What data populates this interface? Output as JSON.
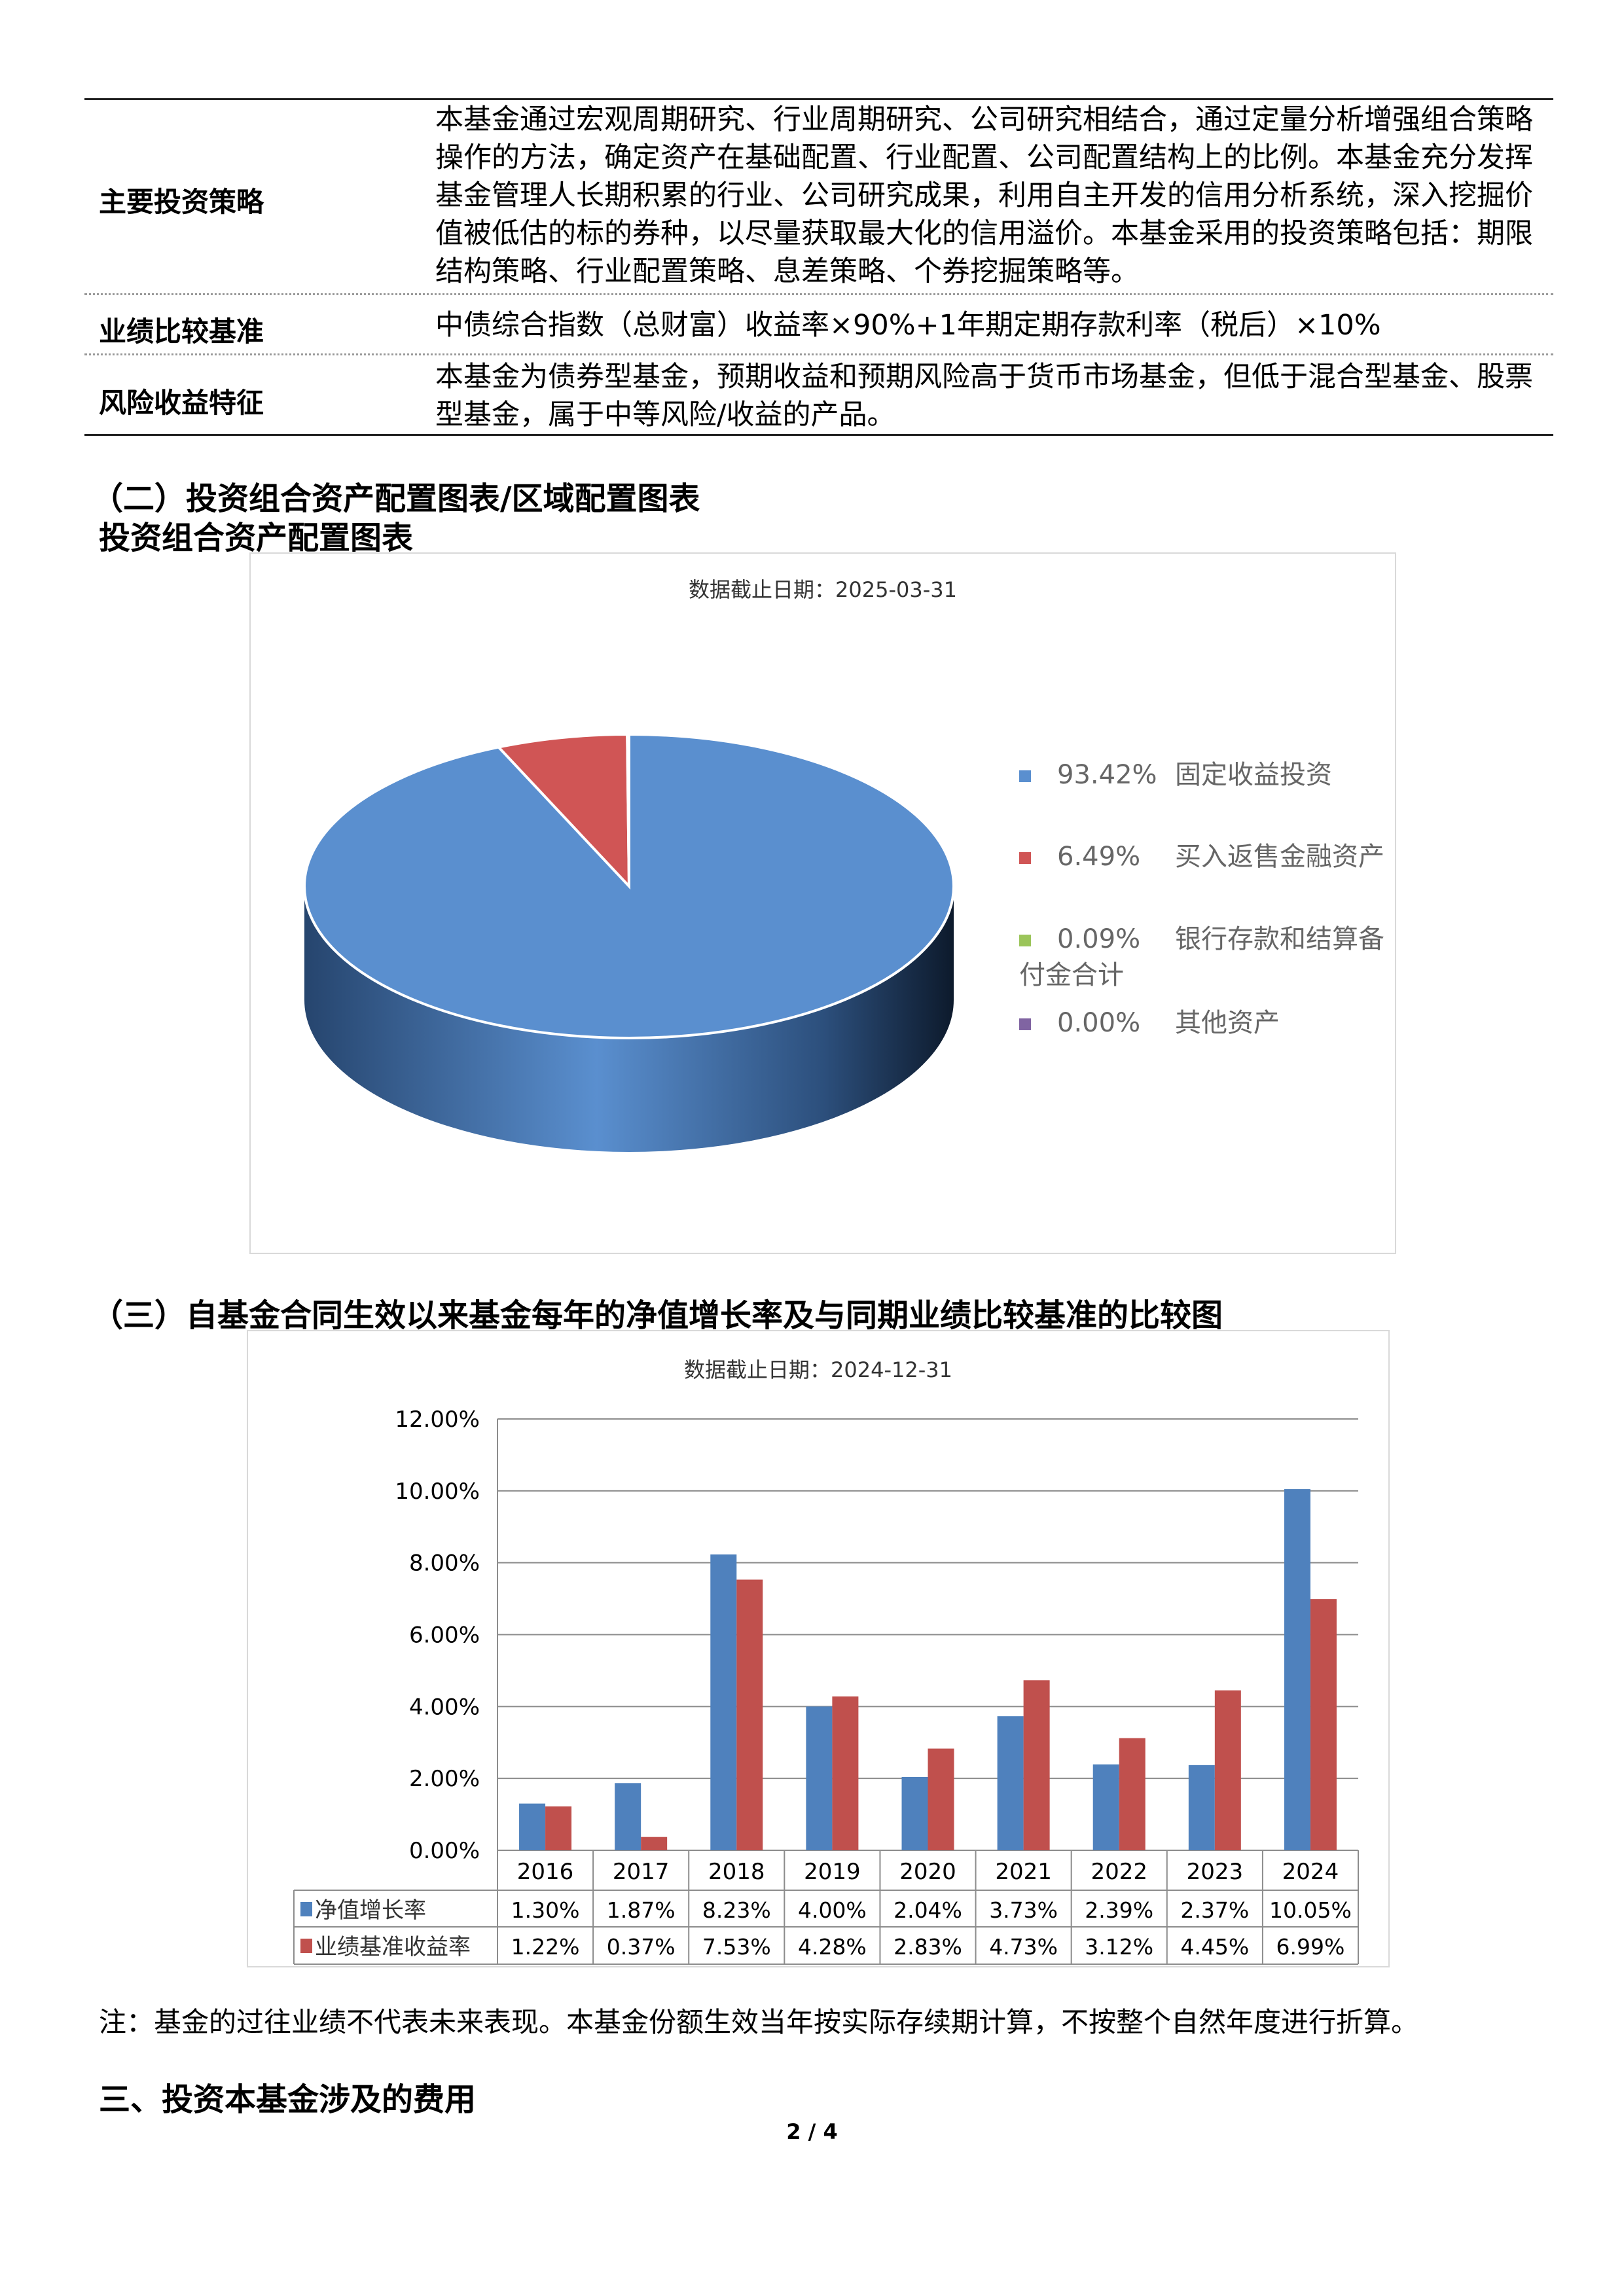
{
  "fund_table": {
    "rows": [
      {
        "label": "主要投资策略",
        "content": "本基金通过宏观周期研究、行业周期研究、公司研究相结合，通过定量分析增强组合策略操作的方法，确定资产在基础配置、行业配置、公司配置结构上的比例。本基金充分发挥基金管理人长期积累的行业、公司研究成果，利用自主开发的信用分析系统，深入挖掘价值被低估的标的券种，以尽量获取最大化的信用溢价。本基金采用的投资策略包括：期限结构策略、行业配置策略、息差策略、个券挖掘策略等。"
      },
      {
        "label": "业绩比较基准",
        "content": "中债综合指数（总财富）收益率×90%+1年期定期存款利率（税后）×10%"
      },
      {
        "label": "风险收益特征",
        "content": "本基金为债券型基金，预期收益和预期风险高于货币市场基金，但低于混合型基金、股票型基金，属于中等风险/收益的产品。"
      }
    ]
  },
  "section2": {
    "heading": "（二）投资组合资产配置图表/区域配置图表",
    "subheading": "投资组合资产配置图表"
  },
  "section3": {
    "heading": "（三）自基金合同生效以来基金每年的净值增长率及与同期业绩比较基准的比较图"
  },
  "chart_data": [
    {
      "type": "pie",
      "title": "数据截止日期：2025-03-31",
      "legend_position": "right",
      "slices": [
        {
          "label": "固定收益投资",
          "value": 93.42,
          "value_label": "93.42%",
          "color": "#5a8fcf"
        },
        {
          "label": "买入返售金融资产",
          "value": 6.49,
          "value_label": "6.49%",
          "color": "#d05555"
        },
        {
          "label": "银行存款和结算备付金合计",
          "value": 0.09,
          "value_label": "0.09%",
          "color": "#9bc55a"
        },
        {
          "label": "其他资产",
          "value": 0.0,
          "value_label": "0.00%",
          "color": "#8064a2"
        }
      ]
    },
    {
      "type": "bar",
      "title": "数据截止日期：2024-12-31",
      "categories": [
        "2016",
        "2017",
        "2018",
        "2019",
        "2020",
        "2021",
        "2022",
        "2023",
        "2024"
      ],
      "ylim": [
        0,
        12
      ],
      "yticks": [
        "0.00%",
        "2.00%",
        "4.00%",
        "6.00%",
        "8.00%",
        "10.00%",
        "12.00%"
      ],
      "grid": true,
      "legend_position": "data-table",
      "series": [
        {
          "name": "净值增长率",
          "color": "#4f81bd",
          "values": [
            1.3,
            1.87,
            8.23,
            4.0,
            2.04,
            3.73,
            2.39,
            2.37,
            10.05
          ],
          "labels": [
            "1.30%",
            "1.87%",
            "8.23%",
            "4.00%",
            "2.04%",
            "3.73%",
            "2.39%",
            "2.37%",
            "10.05%"
          ]
        },
        {
          "name": "业绩基准收益率",
          "color": "#c0504d",
          "values": [
            1.22,
            0.37,
            7.53,
            4.28,
            2.83,
            4.73,
            3.12,
            4.45,
            6.99
          ],
          "labels": [
            "1.22%",
            "0.37%",
            "7.53%",
            "4.28%",
            "2.83%",
            "4.73%",
            "3.12%",
            "4.45%",
            "6.99%"
          ]
        }
      ]
    }
  ],
  "note": "注：基金的过往业绩不代表未来表现。本基金份额生效当年按实际存续期计算，不按整个自然年度进行折算。",
  "section_fees": "三、投资本基金涉及的费用",
  "page_number": "2 / 4"
}
